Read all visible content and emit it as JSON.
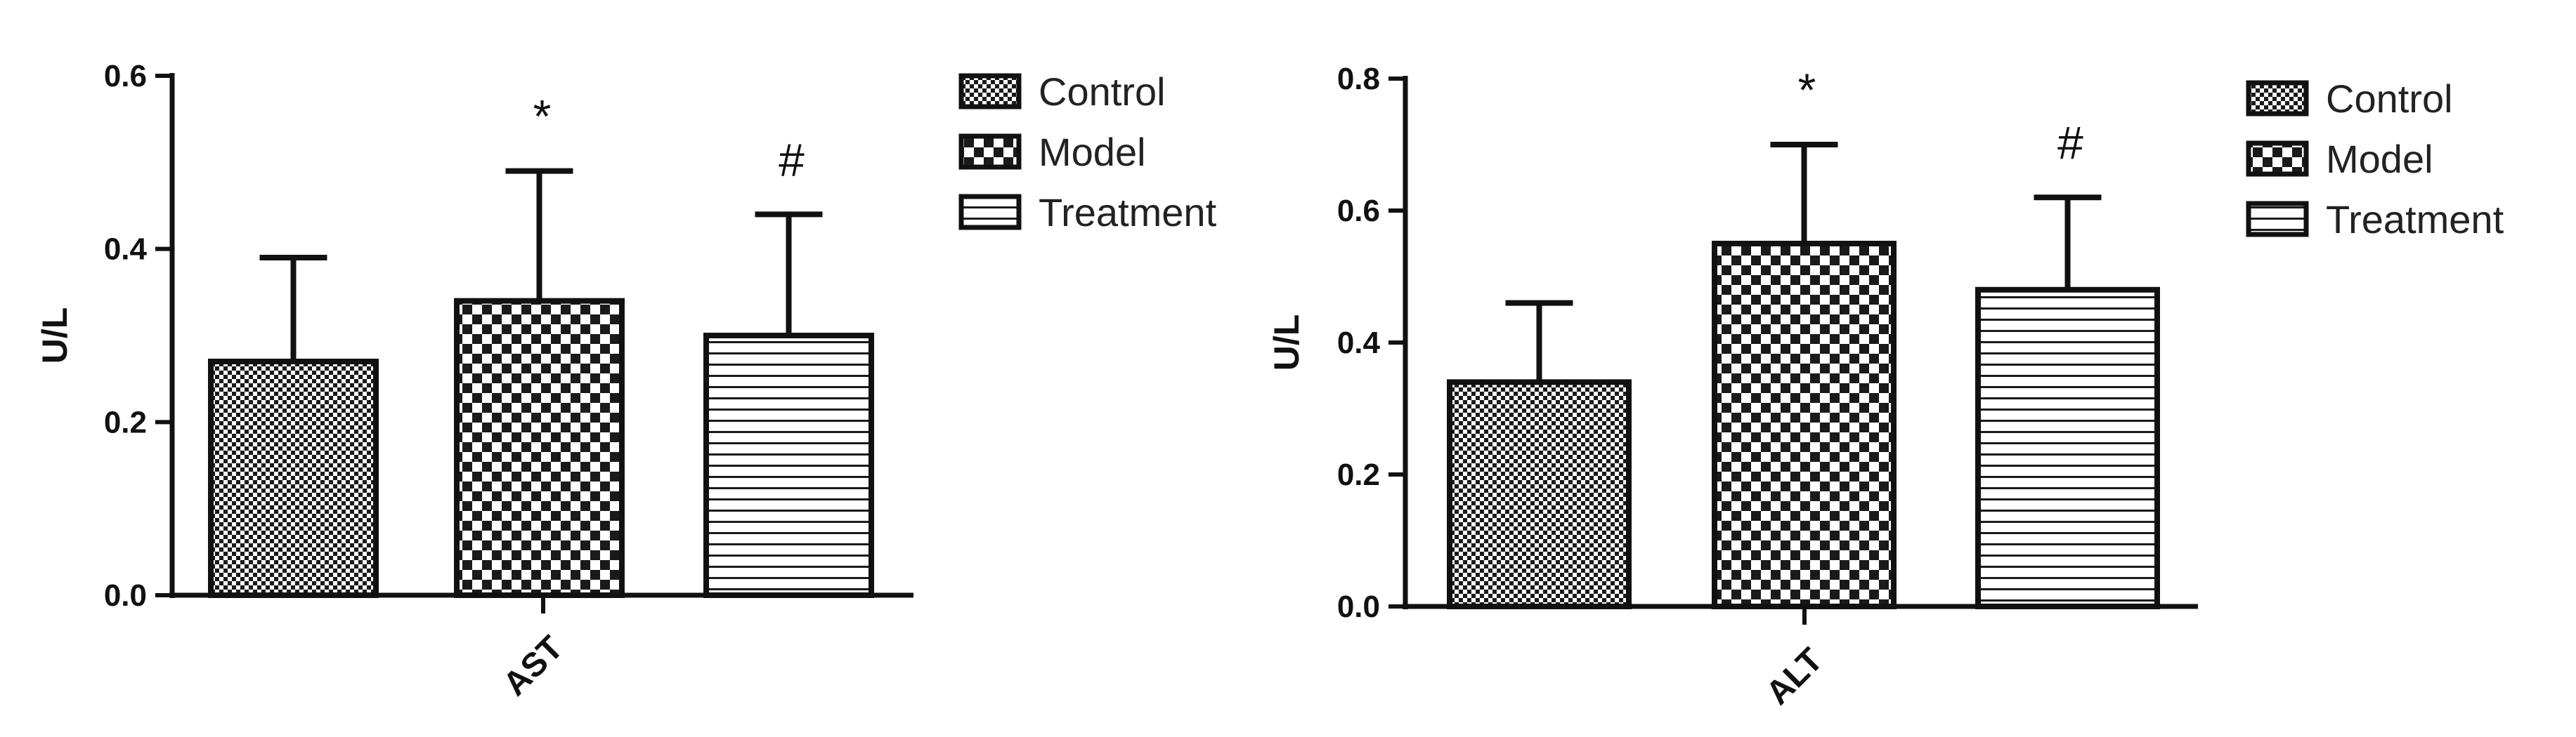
{
  "chart_data": [
    {
      "type": "bar",
      "categories": [
        "AST"
      ],
      "ylabel": "U/L",
      "ylim": [
        0,
        0.6
      ],
      "yticks": [
        "0.0",
        "0.2",
        "0.4",
        "0.6"
      ],
      "grid": false,
      "legend_position": "right",
      "series": [
        {
          "name": "Control",
          "pattern": "fine-checker",
          "values": [
            0.27
          ],
          "error": [
            0.12
          ],
          "annotation": ""
        },
        {
          "name": "Model",
          "pattern": "coarse-checker",
          "values": [
            0.34
          ],
          "error": [
            0.15
          ],
          "annotation": "*"
        },
        {
          "name": "Treatment",
          "pattern": "horizontal-lines",
          "values": [
            0.3
          ],
          "error": [
            0.14
          ],
          "annotation": "#"
        }
      ]
    },
    {
      "type": "bar",
      "categories": [
        "ALT"
      ],
      "ylabel": "U/L",
      "ylim": [
        0,
        0.8
      ],
      "yticks": [
        "0.0",
        "0.2",
        "0.4",
        "0.6",
        "0.8"
      ],
      "grid": false,
      "legend_position": "right",
      "series": [
        {
          "name": "Control",
          "pattern": "fine-checker",
          "values": [
            0.34
          ],
          "error": [
            0.12
          ],
          "annotation": ""
        },
        {
          "name": "Model",
          "pattern": "coarse-checker",
          "values": [
            0.55
          ],
          "error": [
            0.15
          ],
          "annotation": "*"
        },
        {
          "name": "Treatment",
          "pattern": "horizontal-lines",
          "values": [
            0.48
          ],
          "error": [
            0.14
          ],
          "annotation": "#"
        }
      ]
    }
  ]
}
